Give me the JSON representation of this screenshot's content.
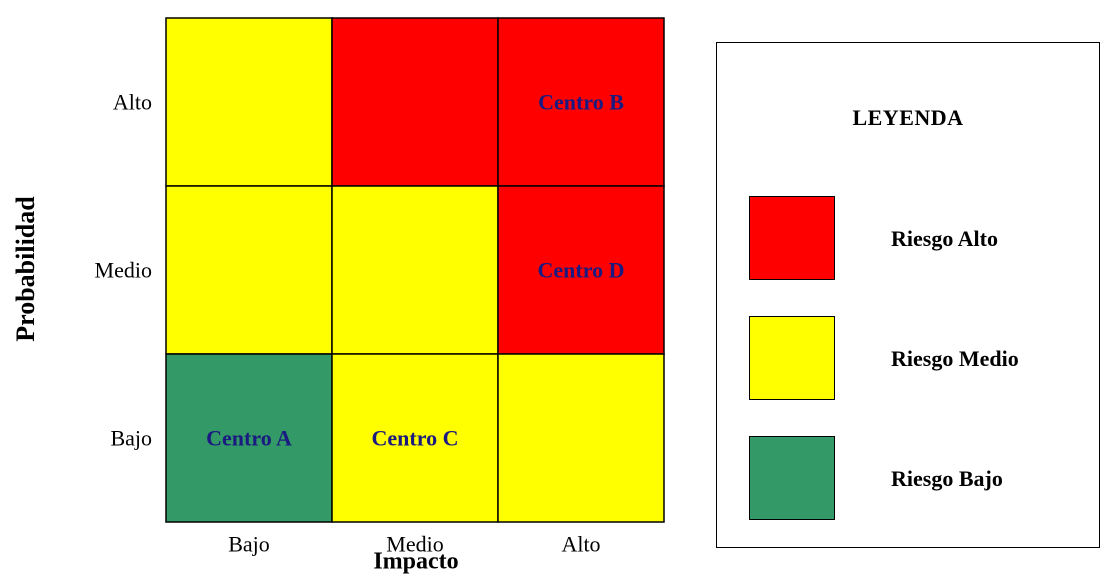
{
  "chart_data": {
    "type": "heatmap",
    "xlabel": "Impacto",
    "ylabel": "Probabilidad",
    "x_categories": [
      "Bajo",
      "Medio",
      "Alto"
    ],
    "y_categories": [
      "Alto",
      "Medio",
      "Bajo"
    ],
    "levels": {
      "alto": {
        "label": "Riesgo Alto",
        "color": "#ff0000"
      },
      "medio": {
        "label": "Riesgo Medio",
        "color": "#ffff00"
      },
      "bajo": {
        "label": "Riesgo Bajo",
        "color": "#339966"
      }
    },
    "cells": [
      [
        "medio",
        "alto",
        "alto"
      ],
      [
        "medio",
        "medio",
        "alto"
      ],
      [
        "bajo",
        "medio",
        "medio"
      ]
    ],
    "cell_labels": [
      [
        "",
        "",
        "Centro B"
      ],
      [
        "",
        "",
        "Centro D"
      ],
      [
        "Centro A",
        "Centro C",
        ""
      ]
    ],
    "cell_label_color": "#1a1a80"
  },
  "legend": {
    "title": "LEYENDA",
    "items": [
      {
        "label": "Riesgo Alto",
        "color": "#ff0000"
      },
      {
        "label": "Riesgo Medio",
        "color": "#ffff00"
      },
      {
        "label": "Riesgo Bajo",
        "color": "#339966"
      }
    ]
  }
}
